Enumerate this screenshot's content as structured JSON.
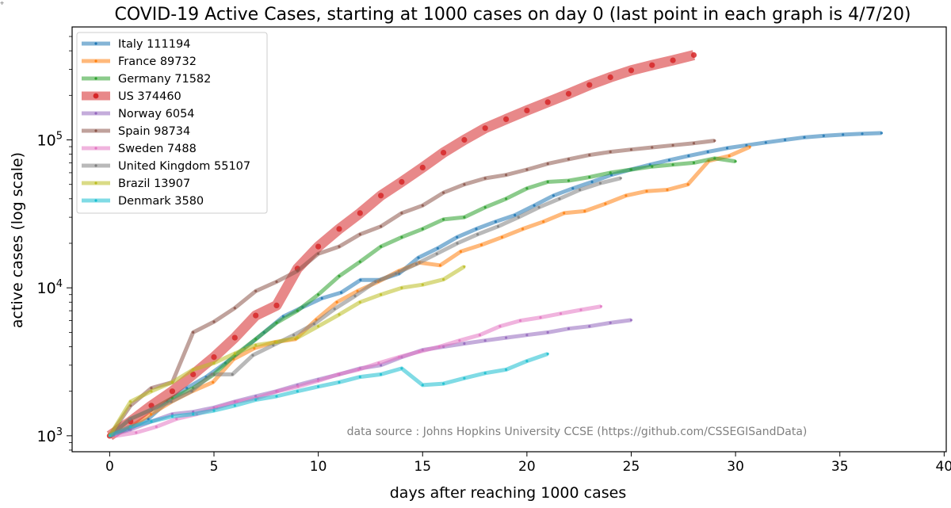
{
  "chart_data": {
    "type": "line",
    "title": "COVID-19 Active Cases, starting at 1000 cases on day 0 (last point in each graph is 4/7/20)",
    "xlabel": "days after reaching 1000 cases",
    "ylabel": "active cases (log scale)",
    "xlim": [
      -1.8,
      40.1
    ],
    "ylim": [
      780,
      580000
    ],
    "yscale": "log",
    "xticks": [
      0,
      5,
      10,
      15,
      20,
      25,
      30,
      35,
      40
    ],
    "yticks": [
      {
        "value": 1000,
        "base": "10",
        "exp": "3"
      },
      {
        "value": 10000,
        "base": "10",
        "exp": "4"
      },
      {
        "value": 100000,
        "base": "10",
        "exp": "5"
      }
    ],
    "grid": false,
    "legend_position": "top-left",
    "annotation": "data source : Johns Hopkins University CCSE (https://github.com/CSSEGISandData)",
    "series": [
      {
        "name": "Italy 111194",
        "color": "#1f77b4",
        "start": 0,
        "step": 0.925,
        "values": [
          1000,
          1110,
          1300,
          1700,
          2100,
          2500,
          3100,
          3900,
          5000,
          6400,
          7400,
          8500,
          9300,
          11300,
          11300,
          12500,
          16000,
          18500,
          22000,
          25000,
          28000,
          31000,
          36000,
          42000,
          47000,
          52000,
          58000,
          63000,
          68000,
          73000,
          78000,
          83000,
          88000,
          92000,
          96000,
          100000,
          104000,
          106500,
          108500,
          110000,
          111194
        ]
      },
      {
        "name": "France 89732",
        "color": "#ff7f0e",
        "start": 0,
        "step": 0.99,
        "values": [
          1000,
          1150,
          1400,
          1700,
          2000,
          2300,
          3300,
          3900,
          4300,
          4500,
          6100,
          8000,
          9500,
          11000,
          13000,
          14800,
          14200,
          17600,
          19500,
          22000,
          25000,
          28000,
          32000,
          33000,
          37000,
          42000,
          45000,
          46000,
          50000,
          72000,
          78000,
          89732
        ]
      },
      {
        "name": "Germany 71582",
        "color": "#2ca02c",
        "start": 0,
        "step": 1.0,
        "values": [
          1000,
          1300,
          1500,
          1800,
          2100,
          2600,
          3500,
          4500,
          5800,
          7000,
          9000,
          12000,
          15000,
          19000,
          22000,
          25000,
          29000,
          30000,
          35000,
          40000,
          47000,
          52000,
          53000,
          56000,
          60000,
          63000,
          66000,
          68000,
          70000,
          75000,
          71582
        ]
      },
      {
        "name": "US 374460",
        "color": "#d62728",
        "start": 0,
        "step": 1.0,
        "values": [
          1000,
          1250,
          1600,
          2000,
          2600,
          3400,
          4600,
          6500,
          7600,
          13500,
          19000,
          25000,
          32000,
          42000,
          52000,
          65000,
          82000,
          100000,
          120000,
          138000,
          158000,
          180000,
          205000,
          235000,
          265000,
          295000,
          320000,
          345000,
          374460
        ]
      },
      {
        "name": "Norway 6054",
        "color": "#9467bd",
        "start": 0,
        "step": 1.0,
        "values": [
          1000,
          1100,
          1250,
          1400,
          1450,
          1550,
          1700,
          1850,
          2000,
          2200,
          2400,
          2600,
          2850,
          3000,
          3400,
          3800,
          4000,
          4200,
          4400,
          4600,
          4800,
          5000,
          5300,
          5500,
          5800,
          6054
        ]
      },
      {
        "name": "Spain 98734",
        "color": "#8c564b",
        "start": 0,
        "step": 1.0,
        "values": [
          1000,
          1600,
          2100,
          2300,
          5000,
          5900,
          7300,
          9500,
          11000,
          13000,
          17000,
          19000,
          23000,
          26000,
          32000,
          36000,
          44000,
          50000,
          55000,
          58000,
          63000,
          69000,
          74000,
          79000,
          83000,
          86000,
          89000,
          92000,
          95000,
          98734
        ]
      },
      {
        "name": "Sweden 7488",
        "color": "#e377c2",
        "start": 0.3,
        "step": 0.969,
        "values": [
          1000,
          1050,
          1150,
          1300,
          1400,
          1550,
          1700,
          1800,
          2000,
          2150,
          2350,
          2600,
          2800,
          3100,
          3400,
          3700,
          4000,
          4400,
          4800,
          5500,
          6000,
          6300,
          6700,
          7100,
          7488
        ]
      },
      {
        "name": "United Kingdom 55107",
        "color": "#7f7f7f",
        "start": 0,
        "step": 0.98,
        "values": [
          1000,
          1300,
          1500,
          1700,
          2000,
          2600,
          2600,
          3500,
          4100,
          4800,
          5700,
          7200,
          8800,
          11000,
          12500,
          14500,
          17000,
          20000,
          23000,
          26000,
          30000,
          35000,
          40000,
          46000,
          51000,
          55107
        ]
      },
      {
        "name": "Brazil 13907",
        "color": "#bcbd22",
        "start": 0,
        "step": 1.0,
        "values": [
          1000,
          1700,
          2000,
          2300,
          2800,
          3100,
          3600,
          4100,
          4300,
          4600,
          5500,
          6600,
          8000,
          9000,
          10000,
          10500,
          11400,
          13907
        ]
      },
      {
        "name": "Denmark 3580",
        "color": "#17becf",
        "start": 0,
        "step": 1.0,
        "values": [
          1000,
          1150,
          1250,
          1350,
          1400,
          1480,
          1600,
          1750,
          1850,
          2000,
          2150,
          2300,
          2500,
          2600,
          2850,
          2200,
          2250,
          2450,
          2650,
          2800,
          3200,
          3580
        ]
      }
    ]
  }
}
